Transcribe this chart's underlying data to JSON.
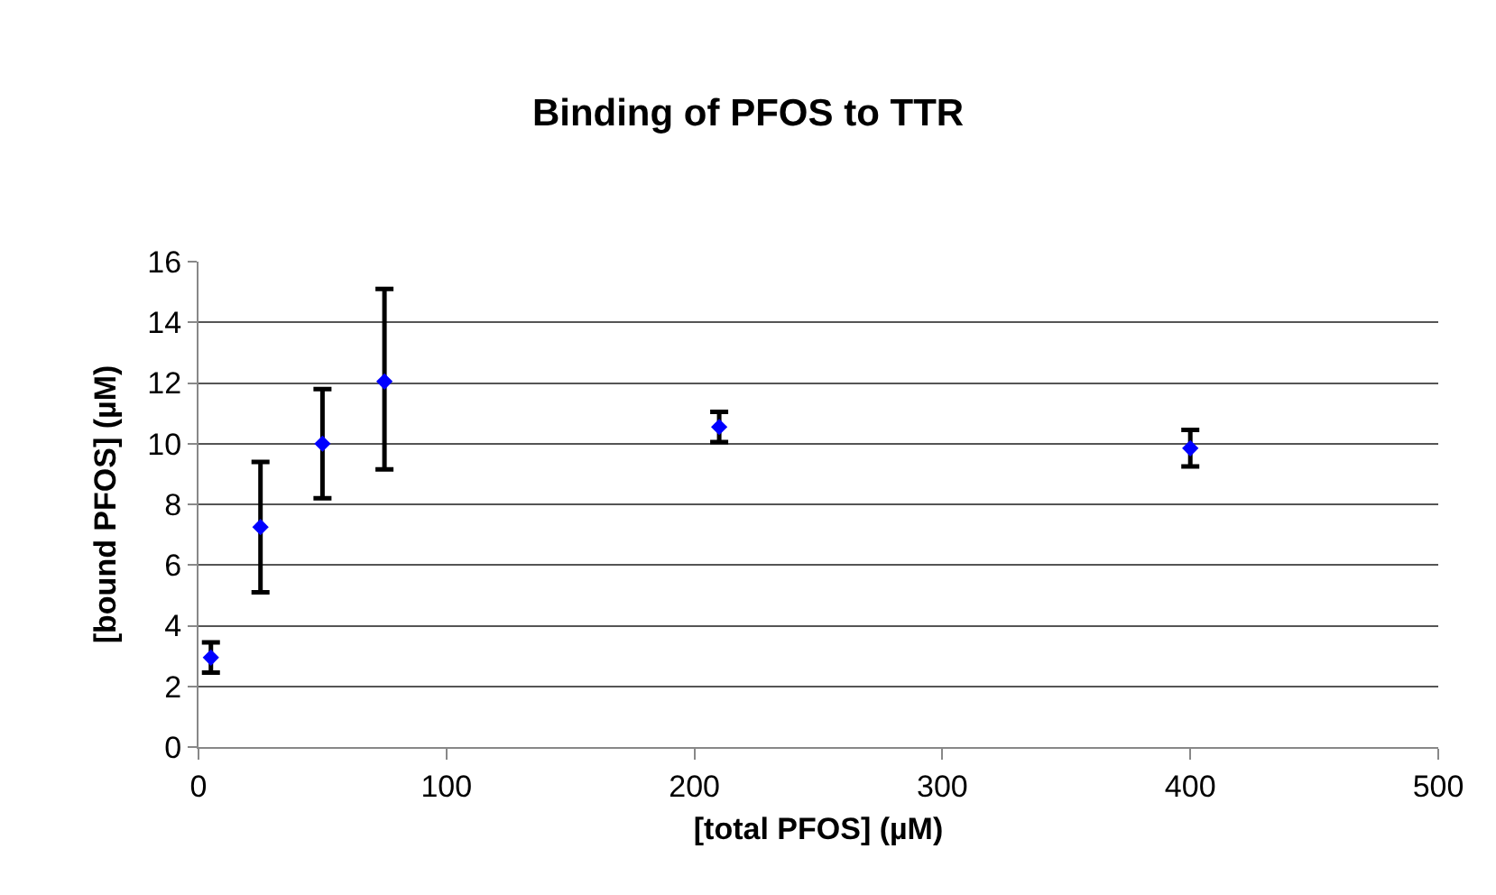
{
  "chart_data": {
    "type": "scatter",
    "title": "Binding of PFOS to TTR",
    "xlabel": "[total PFOS] (µM)",
    "ylabel": "[bound PFOS] (µM)",
    "x": [
      5,
      25,
      50,
      75,
      210,
      400
    ],
    "series": [
      {
        "color": "#0000ff",
        "values": [
          2.95,
          7.25,
          10.0,
          12.05,
          10.55,
          9.85
        ],
        "errors": [
          0.5,
          [
            5.1,
            9.4
          ],
          [
            8.2,
            11.8
          ],
          [
            9.15,
            15.1
          ],
          0.5,
          0.6
        ]
      }
    ],
    "xlim": [
      0,
      500
    ],
    "xticks": [
      0,
      100,
      200,
      300,
      400,
      500
    ],
    "ylim": [
      0,
      16
    ],
    "yticks": [
      0,
      2,
      4,
      6,
      8,
      10,
      12,
      14,
      16
    ],
    "grid": "y",
    "marker": "diamond",
    "legend": false
  }
}
